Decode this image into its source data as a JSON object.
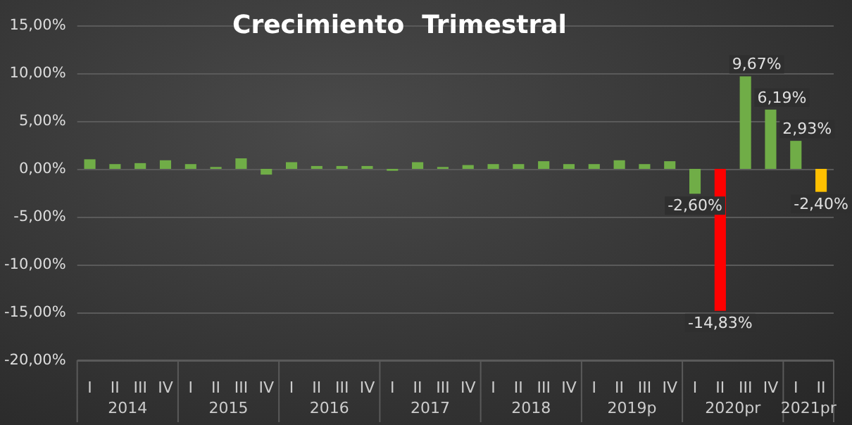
{
  "chart_data": {
    "type": "bar",
    "title": "Crecimiento  Trimestral",
    "categories": [
      "I",
      "II",
      "III",
      "IV",
      "I",
      "II",
      "III",
      "IV",
      "I",
      "II",
      "III",
      "IV",
      "I",
      "II",
      "III",
      "IV",
      "I",
      "II",
      "III",
      "IV",
      "I",
      "II",
      "III",
      "IV",
      "I",
      "II",
      "III",
      "IV",
      "I",
      "II"
    ],
    "values": [
      1.0,
      0.5,
      0.6,
      0.9,
      0.5,
      0.2,
      1.1,
      -0.6,
      0.7,
      0.3,
      0.3,
      0.3,
      -0.2,
      0.7,
      0.2,
      0.4,
      0.5,
      0.5,
      0.8,
      0.5,
      0.5,
      0.9,
      0.5,
      0.8,
      -2.6,
      -14.83,
      9.67,
      6.19,
      2.93,
      -2.4
    ],
    "colors": [
      "#70ad47",
      "#70ad47",
      "#70ad47",
      "#70ad47",
      "#70ad47",
      "#70ad47",
      "#70ad47",
      "#70ad47",
      "#70ad47",
      "#70ad47",
      "#70ad47",
      "#70ad47",
      "#70ad47",
      "#70ad47",
      "#70ad47",
      "#70ad47",
      "#70ad47",
      "#70ad47",
      "#70ad47",
      "#70ad47",
      "#70ad47",
      "#70ad47",
      "#70ad47",
      "#70ad47",
      "#70ad47",
      "#ff0000",
      "#70ad47",
      "#70ad47",
      "#70ad47",
      "#ffc000"
    ],
    "value_labels": [
      null,
      null,
      null,
      null,
      null,
      null,
      null,
      null,
      null,
      null,
      null,
      null,
      null,
      null,
      null,
      null,
      null,
      null,
      null,
      null,
      null,
      null,
      null,
      null,
      "-2,60%",
      "-14,83%",
      "9,67%",
      "6,19%",
      "2,93%",
      "-2,40%"
    ],
    "annotations": [
      "2014",
      "2015",
      "2016",
      "2017",
      "2018",
      "2019p",
      "2020pr",
      "2021pr"
    ],
    "ylim": [
      -20,
      15
    ],
    "yticks": [
      {
        "value": -20,
        "label": "-20,00%"
      },
      {
        "value": -15,
        "label": "-15,00%"
      },
      {
        "value": -10,
        "label": "-10,00%"
      },
      {
        "value": -5,
        "label": "-5,00%"
      },
      {
        "value": 0,
        "label": "0,00%"
      },
      {
        "value": 5,
        "label": "5,00%"
      },
      {
        "value": 10,
        "label": "10,00%"
      },
      {
        "value": 15,
        "label": "15,00%"
      }
    ],
    "grid": "y"
  }
}
